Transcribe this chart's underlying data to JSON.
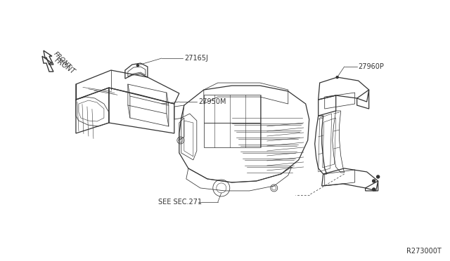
{
  "background_color": "#ffffff",
  "line_color": "#333333",
  "labels": {
    "part1": "27165J",
    "part2": "27950M",
    "part3": "27960P",
    "ref": "SEE SEC.271",
    "diagram_id": "R273000T",
    "front": "FRONT"
  },
  "font_size_labels": 7,
  "font_size_ref": 7,
  "font_size_id": 7,
  "lw_main": 0.9,
  "lw_thin": 0.55,
  "lw_detail": 0.4
}
